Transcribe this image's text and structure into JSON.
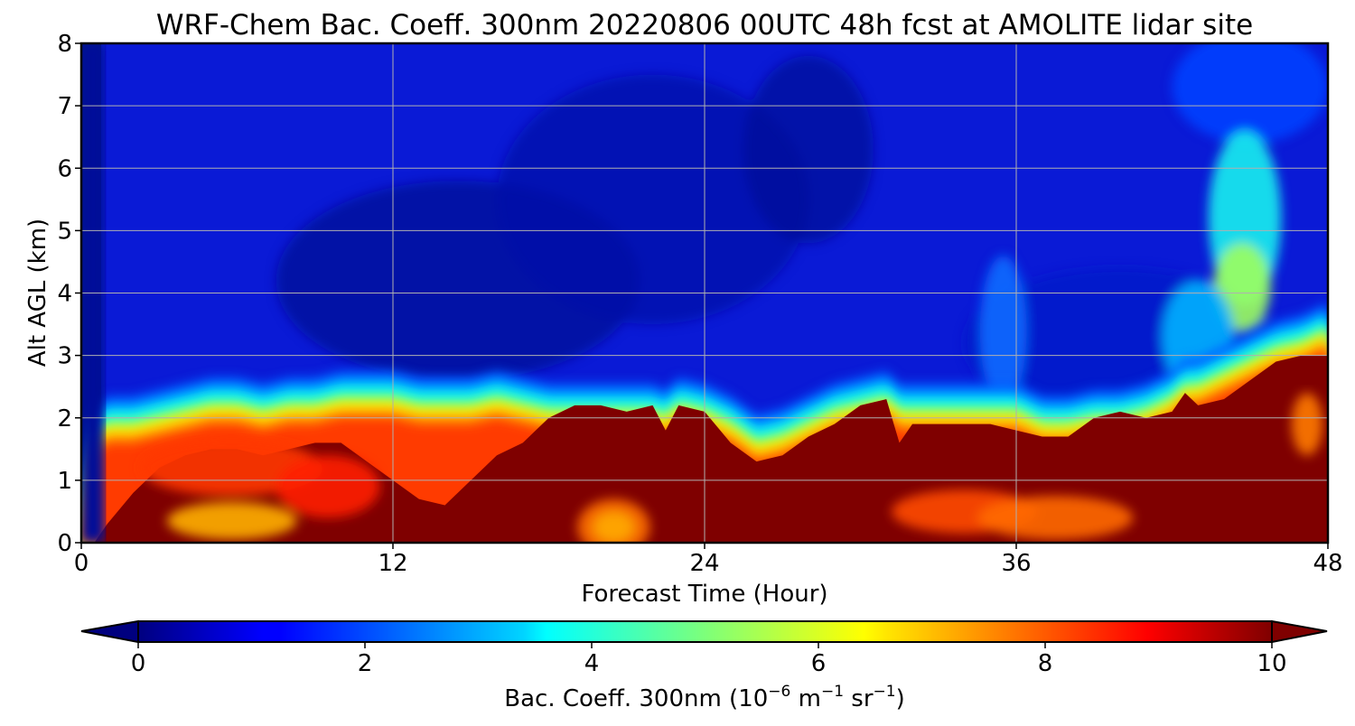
{
  "chart_data": {
    "type": "heatmap",
    "title": "WRF-Chem Bac. Coeff. 300nm  20220806 00UTC 48h fcst at AMOLITE lidar site",
    "xlabel": "Forecast Time (Hour)",
    "ylabel": "Alt AGL (km)",
    "xlim": [
      0,
      48
    ],
    "ylim": [
      0,
      8
    ],
    "x_ticks": [
      0,
      12,
      24,
      36,
      48
    ],
    "y_ticks": [
      0,
      1,
      2,
      3,
      4,
      5,
      6,
      7,
      8
    ],
    "grid": true,
    "colormap": "jet",
    "colorbar": {
      "label_prefix": "Bac. Coeff. 300nm  (10",
      "label_exp1": "−6",
      "label_mid": " m",
      "label_exp2": "−1",
      "label_sr": " sr",
      "label_exp3": "−1",
      "label_suffix": ")",
      "vmin": 0,
      "vmax": 10,
      "ticks": [
        0,
        2,
        4,
        6,
        8,
        10
      ],
      "extend": "both"
    },
    "model": {
      "times": [
        0,
        0.5,
        1,
        2,
        3,
        4,
        5,
        6,
        7,
        8,
        9,
        10,
        11,
        12,
        13,
        14,
        15,
        16,
        17,
        18,
        19,
        20,
        21,
        22,
        22.5,
        23,
        24,
        25,
        26,
        27,
        28,
        29,
        30,
        31,
        31.5,
        32,
        33,
        34,
        35,
        36,
        37,
        38,
        39,
        40,
        41,
        42,
        42.5,
        43,
        44,
        45,
        46,
        47,
        48
      ],
      "layer_top_km": [
        0,
        1.8,
        2.0,
        2.0,
        2.1,
        2.2,
        2.3,
        2.3,
        2.2,
        2.3,
        2.3,
        2.4,
        2.4,
        2.4,
        2.3,
        2.3,
        2.3,
        2.4,
        2.3,
        2.2,
        2.2,
        2.2,
        2.2,
        2.2,
        2.1,
        2.3,
        2.2,
        2.0,
        1.7,
        1.8,
        2.0,
        2.2,
        2.3,
        2.4,
        2.2,
        2.2,
        2.2,
        2.2,
        2.2,
        2.2,
        2.0,
        2.0,
        2.1,
        2.1,
        2.2,
        2.4,
        2.6,
        2.6,
        2.8,
        3.0,
        3.2,
        3.3,
        3.5
      ],
      "core_top_km": [
        0,
        0,
        0.3,
        0.8,
        1.2,
        1.4,
        1.5,
        1.5,
        1.4,
        1.5,
        1.6,
        1.6,
        1.3,
        1.0,
        0.7,
        0.6,
        1.0,
        1.4,
        1.6,
        2.0,
        2.2,
        2.2,
        2.1,
        2.2,
        1.8,
        2.2,
        2.1,
        1.6,
        1.3,
        1.4,
        1.7,
        1.9,
        2.2,
        2.3,
        1.6,
        1.9,
        1.9,
        1.9,
        1.9,
        1.8,
        1.7,
        1.7,
        2.0,
        2.1,
        2.0,
        2.1,
        2.4,
        2.2,
        2.3,
        2.6,
        2.9,
        3.0,
        3.0
      ]
    }
  }
}
